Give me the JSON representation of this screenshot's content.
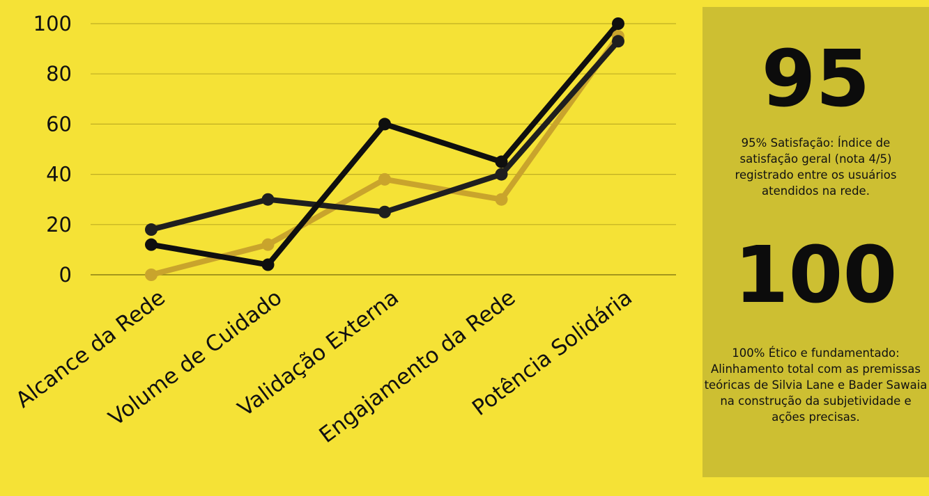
{
  "chart_data": {
    "type": "line",
    "categories": [
      "Alcance da Rede",
      "Volume de Cuidado",
      "Validação Externa",
      "Engajamento da Rede",
      "Potência Solidária"
    ],
    "yticks": [
      "0",
      "20",
      "40",
      "60",
      "80",
      "100"
    ],
    "ylim": [
      0,
      100
    ],
    "grid": true,
    "series": [
      {
        "values": [
          0,
          12,
          38,
          30,
          95
        ],
        "color": "#c9a42c"
      },
      {
        "values": [
          18,
          30,
          25,
          40,
          93
        ],
        "color": "#1f1f1f"
      },
      {
        "values": [
          12,
          4,
          60,
          45,
          100
        ],
        "color": "#0f0f0f"
      }
    ],
    "colors": {
      "background": "#f5e236",
      "gridline": "#bfae22",
      "panel": "#cdbf32"
    }
  },
  "stats": [
    {
      "value": "95",
      "description": "95% Satisfação: Índice de satisfação geral (nota 4/5) registrado entre os usuários atendidos na rede."
    },
    {
      "value": "100",
      "description": "100% Ético e fundamentado: Alinhamento total com as premissas teóricas de Silvia Lane e Bader Sawaia na construção da subjetividade e ações precisas."
    }
  ]
}
